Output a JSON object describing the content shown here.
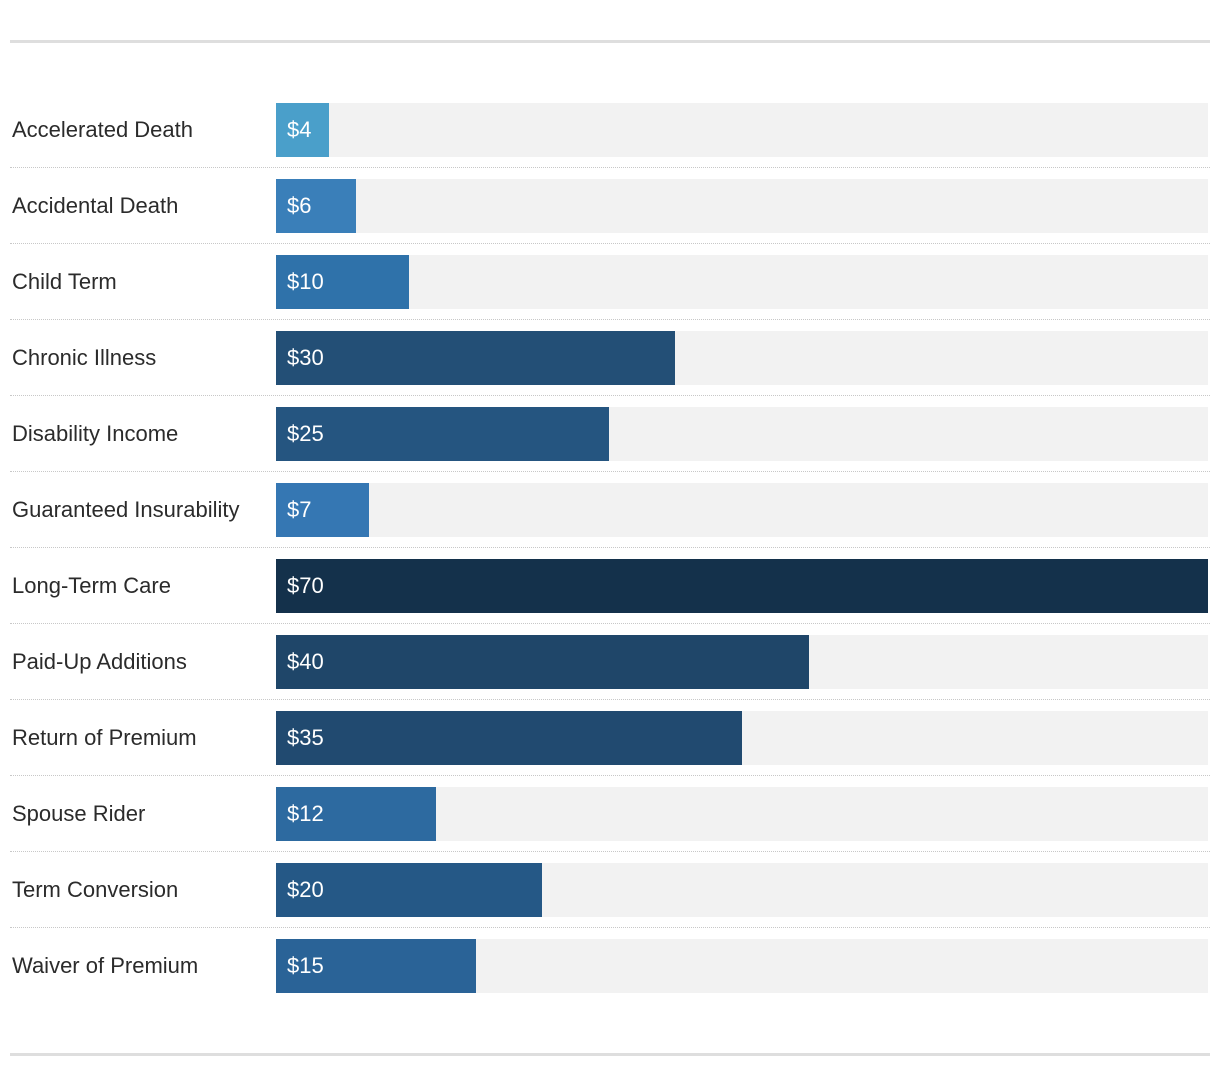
{
  "chart_data": {
    "type": "bar",
    "orientation": "horizontal",
    "title": "",
    "xlabel": "",
    "ylabel": "",
    "xlim": [
      0,
      70
    ],
    "value_prefix": "$",
    "categories": [
      "Accelerated Death",
      "Accidental Death",
      "Child Term",
      "Chronic Illness",
      "Disability Income",
      "Guaranteed Insurability",
      "Long-Term Care",
      "Paid-Up Additions",
      "Return of Premium",
      "Spouse Rider",
      "Term Conversion",
      "Waiver of Premium"
    ],
    "values": [
      4,
      6,
      10,
      30,
      25,
      7,
      70,
      40,
      35,
      12,
      20,
      15
    ],
    "value_labels": [
      "$4",
      "$6",
      "$10",
      "$30",
      "$25",
      "$7",
      "$70",
      "$40",
      "$35",
      "$12",
      "$20",
      "$15"
    ],
    "bar_colors": [
      "#4a9fca",
      "#3a7fb9",
      "#2f72aa",
      "#234f76",
      "#255580",
      "#3577b3",
      "#14314b",
      "#1f4669",
      "#214a70",
      "#2d6aa0",
      "#255886",
      "#2a6397"
    ],
    "track_color": "#f2f2f2",
    "grid": false
  }
}
